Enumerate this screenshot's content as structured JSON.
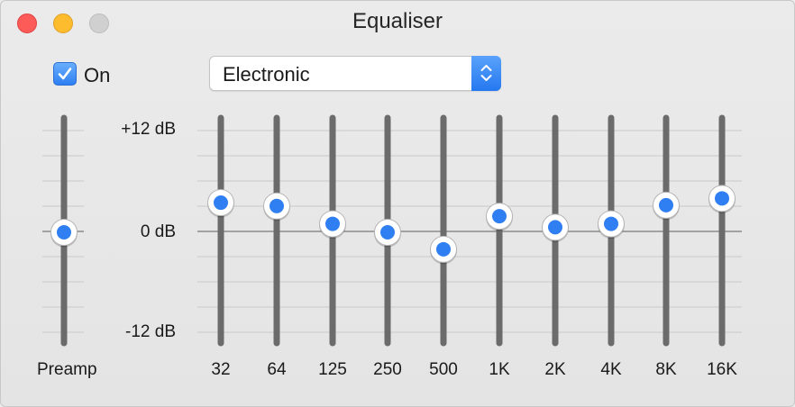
{
  "window": {
    "title": "Equaliser"
  },
  "controls": {
    "on_label": "On",
    "on_checked": true,
    "preset_value": "Electronic"
  },
  "scale": {
    "top": "+12 dB",
    "mid": "0 dB",
    "bottom": "-12 dB"
  },
  "preamp": {
    "label": "Preamp",
    "value_db": 0
  },
  "bands": [
    {
      "label": "32",
      "value_db": 3.5
    },
    {
      "label": "64",
      "value_db": 3.1
    },
    {
      "label": "125",
      "value_db": 1.0
    },
    {
      "label": "250",
      "value_db": 0
    },
    {
      "label": "500",
      "value_db": -2.0
    },
    {
      "label": "1K",
      "value_db": 1.9
    },
    {
      "label": "2K",
      "value_db": 0.6
    },
    {
      "label": "4K",
      "value_db": 1.0
    },
    {
      "label": "8K",
      "value_db": 3.2
    },
    {
      "label": "16K",
      "value_db": 4.0
    }
  ],
  "colors": {
    "accent": "#2f7ff2",
    "track": "#6b6b6b",
    "gridline": "#c9c9c9"
  }
}
